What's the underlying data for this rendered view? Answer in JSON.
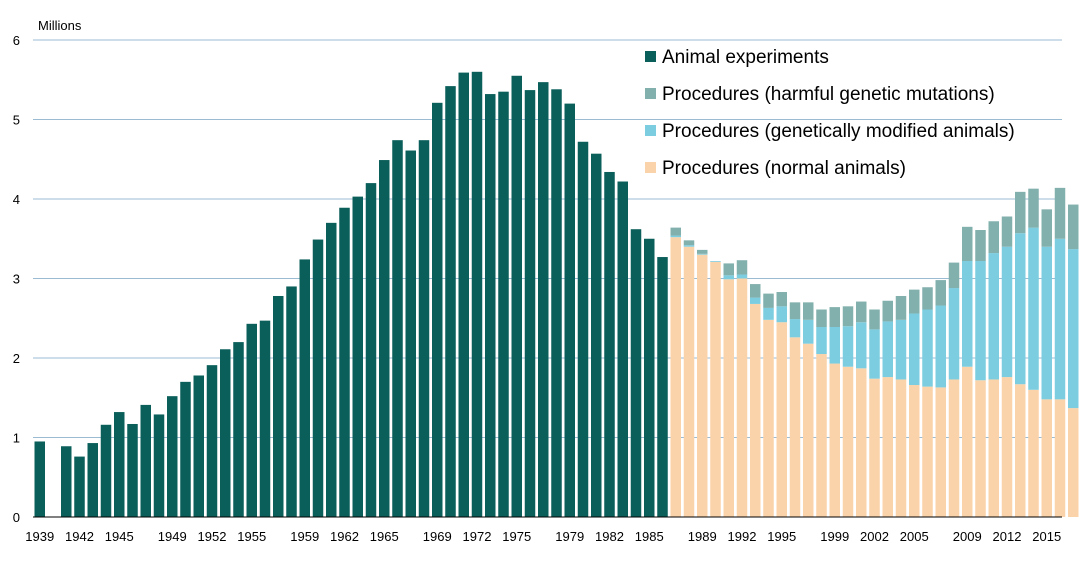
{
  "colors": {
    "animal_experiments": "#0b5f5a",
    "harmful": "#82b0ad",
    "gm": "#7dcde0",
    "normal": "#fbd3aa",
    "grid": "#9bbbd3",
    "text": "#000000"
  },
  "chart_data": {
    "type": "bar",
    "stacked": true,
    "unit_label": "Millions",
    "ylim": [
      0,
      6
    ],
    "yticks": [
      0,
      1,
      2,
      3,
      4,
      5,
      6
    ],
    "grid": true,
    "legend_position": "top-right",
    "x_tick_labels": [
      "1939",
      "1942",
      "1945",
      "1949",
      "1952",
      "1955",
      "1959",
      "1962",
      "1965",
      "1969",
      "1972",
      "1975",
      "1979",
      "1982",
      "1985",
      "1989",
      "1992",
      "1995",
      "1999",
      "2002",
      "2005",
      "2009",
      "2012",
      "2015"
    ],
    "series": [
      {
        "name": "Animal experiments",
        "color_key": "animal_experiments",
        "groups": [
          {
            "years": [
              1939
            ],
            "values": [
              0.95
            ]
          },
          {
            "years": [
              1941,
              1942,
              1943,
              1944,
              1945
            ],
            "values": [
              0.89,
              0.76,
              0.93,
              1.16,
              1.32
            ]
          },
          {
            "years": [
              1946,
              1947,
              1948,
              1949,
              1950
            ],
            "values": [
              1.17,
              1.41,
              1.29,
              1.52,
              1.7
            ]
          },
          {
            "years": [
              1951,
              1952,
              1953,
              1954,
              1955
            ],
            "values": [
              1.78,
              1.91,
              2.11,
              2.2,
              2.43
            ]
          },
          {
            "years": [
              1956,
              1957,
              1958,
              1959,
              1960
            ],
            "values": [
              2.47,
              2.78,
              2.9,
              3.24,
              3.49
            ]
          },
          {
            "years": [
              1961,
              1962,
              1963,
              1964,
              1965
            ],
            "values": [
              3.7,
              3.89,
              4.03,
              4.2,
              4.49
            ]
          },
          {
            "years": [
              1966,
              1967,
              1968,
              1969,
              1970
            ],
            "values": [
              4.74,
              4.61,
              4.74,
              5.21,
              5.42
            ]
          },
          {
            "years": [
              1971,
              1972,
              1973,
              1974,
              1975
            ],
            "values": [
              5.59,
              5.6,
              5.32,
              5.35,
              5.55
            ]
          },
          {
            "years": [
              1976,
              1977,
              1978,
              1979,
              1980
            ],
            "values": [
              5.37,
              5.47,
              5.38,
              5.2,
              4.72
            ]
          },
          {
            "years": [
              1981,
              1982,
              1983,
              1984,
              1985
            ],
            "values": [
              4.57,
              4.34,
              4.22,
              3.62,
              3.5
            ]
          },
          {
            "years": [
              1986,
              1987
            ],
            "values": [
              3.27,
              3.1
            ]
          }
        ]
      },
      {
        "name": "Procedures (normal animals)",
        "color_key": "normal"
      },
      {
        "name": "Procedures (genetically modified animals)",
        "color_key": "gm"
      },
      {
        "name": "Procedures (harmful genetic mutations)",
        "color_key": "harmful"
      }
    ],
    "procedure_groups": [
      {
        "years": [
          1987,
          1988,
          1989,
          1990
        ],
        "normal": [
          3.52,
          3.4,
          3.3,
          3.21
        ],
        "gm": [
          0.02,
          0.02,
          0.01,
          0.01
        ],
        "harmful": [
          0.1,
          0.06,
          0.05,
          0.0
        ]
      },
      {
        "years": [
          1991,
          1992,
          1993,
          1994,
          1995
        ],
        "normal": [
          2.99,
          3.0,
          2.68,
          2.48,
          2.45
        ],
        "gm": [
          0.05,
          0.05,
          0.08,
          0.15,
          0.2
        ],
        "harmful": [
          0.15,
          0.18,
          0.17,
          0.18,
          0.18
        ]
      },
      {
        "years": [
          1996,
          1997,
          1998,
          1999,
          2000
        ],
        "normal": [
          2.26,
          2.18,
          2.05,
          1.93,
          1.89
        ],
        "gm": [
          0.23,
          0.3,
          0.34,
          0.46,
          0.51
        ],
        "harmful": [
          0.21,
          0.22,
          0.22,
          0.25,
          0.25
        ]
      },
      {
        "years": [
          2001,
          2002,
          2003,
          2004,
          2005
        ],
        "normal": [
          1.87,
          1.74,
          1.76,
          1.73,
          1.66
        ],
        "gm": [
          0.58,
          0.62,
          0.7,
          0.75,
          0.9
        ],
        "harmful": [
          0.26,
          0.25,
          0.26,
          0.3,
          0.3
        ]
      },
      {
        "years": [
          2006,
          2007,
          2008,
          2009,
          2010
        ],
        "normal": [
          1.64,
          1.63,
          1.73,
          1.89,
          1.72
        ],
        "gm": [
          0.97,
          1.03,
          1.15,
          1.33,
          1.5
        ],
        "harmful": [
          0.28,
          0.32,
          0.32,
          0.43,
          0.39
        ]
      },
      {
        "years": [
          2011,
          2012,
          2013,
          2014,
          2015
        ],
        "normal": [
          1.73,
          1.76,
          1.67,
          1.6,
          1.48
        ],
        "gm": [
          1.59,
          1.64,
          1.9,
          2.04,
          1.92
        ],
        "harmful": [
          0.4,
          0.38,
          0.52,
          0.49,
          0.47
        ]
      },
      {
        "years": [
          2016,
          2017
        ],
        "normal": [
          1.48,
          1.37
        ],
        "gm": [
          2.02,
          2.0
        ],
        "harmful": [
          0.64,
          0.56
        ]
      }
    ]
  }
}
